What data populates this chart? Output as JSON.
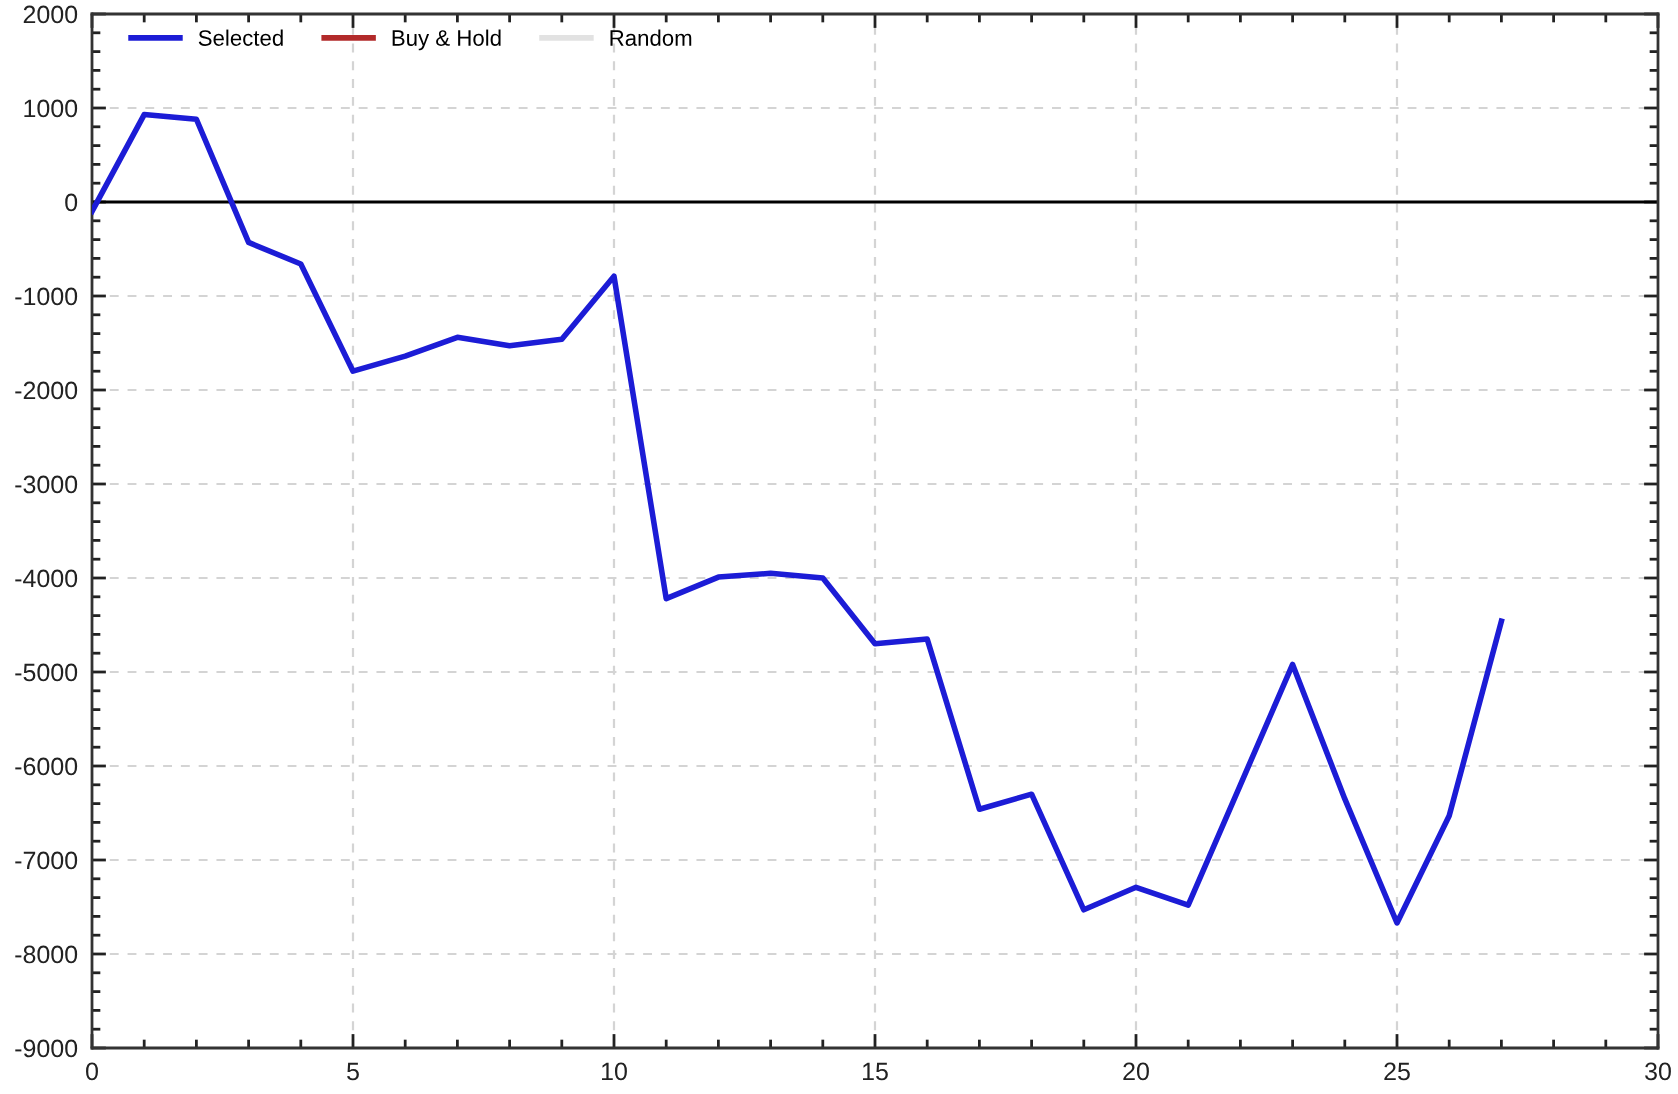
{
  "chart_data": {
    "type": "line",
    "x": [
      0,
      1,
      2,
      3,
      4,
      5,
      6,
      7,
      8,
      9,
      10,
      11,
      12,
      13,
      14,
      15,
      16,
      17,
      18,
      19,
      20,
      21,
      22,
      23,
      24,
      25,
      26,
      27
    ],
    "series": [
      {
        "name": "Selected",
        "color": "#1c1cd6",
        "values": [
          -100,
          930,
          880,
          -430,
          -660,
          -1800,
          -1640,
          -1440,
          -1530,
          -1460,
          -790,
          -4220,
          -3990,
          -3950,
          -4000,
          -4700,
          -4650,
          -6460,
          -6300,
          -7530,
          -7290,
          -7480,
          -6200,
          -4920,
          -6350,
          -7670,
          -6530,
          -4460
        ]
      },
      {
        "name": "Buy & Hold",
        "color": "#b22a2a",
        "values": [
          null,
          null,
          null,
          null,
          null,
          null,
          null,
          null,
          null,
          null,
          null,
          null,
          null,
          null,
          null,
          null,
          null,
          null,
          null,
          null,
          null,
          null,
          null,
          null,
          null,
          null,
          null,
          null
        ]
      },
      {
        "name": "Random",
        "color": "#e2e2e2",
        "values": [
          null,
          null,
          null,
          null,
          null,
          null,
          null,
          null,
          null,
          null,
          null,
          null,
          null,
          null,
          null,
          null,
          null,
          null,
          null,
          null,
          null,
          null,
          null,
          null,
          null,
          null,
          null,
          null
        ]
      }
    ],
    "xlim": [
      0,
      30
    ],
    "xticks": [
      0,
      5,
      10,
      15,
      20,
      25,
      30
    ],
    "ylim": [
      -9000,
      2000
    ],
    "yticks": [
      -9000,
      -8000,
      -7000,
      -6000,
      -5000,
      -4000,
      -3000,
      -2000,
      -1000,
      0,
      1000,
      2000
    ],
    "grid": true,
    "legend": "top left",
    "ref_lines": [
      {
        "axis": "y",
        "value": 0,
        "color": "#000000"
      }
    ]
  }
}
